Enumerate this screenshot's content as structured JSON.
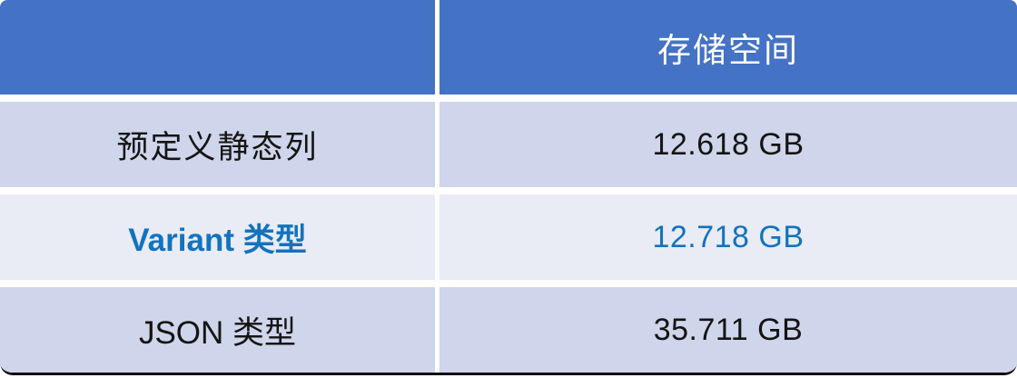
{
  "table": {
    "header": {
      "col1_label": "",
      "col2_label": "存储空间"
    },
    "rows": [
      {
        "label": "预定义静态列",
        "value": "12.618 GB",
        "accent": false
      },
      {
        "label": "Variant 类型",
        "value": "12.718 GB",
        "accent": true
      },
      {
        "label": "JSON 类型",
        "value": "35.711 GB",
        "accent": false
      }
    ]
  },
  "chart_data": {
    "type": "table",
    "title": "",
    "columns": [
      "",
      "存储空间"
    ],
    "categories": [
      "预定义静态列",
      "Variant 类型",
      "JSON 类型"
    ],
    "values_gb": [
      12.618,
      12.718,
      35.711
    ],
    "value_labels": [
      "12.618 GB",
      "12.718 GB",
      "35.711 GB"
    ],
    "highlighted_row": "Variant 类型",
    "layout": "banded-rows, centered text, header row on top"
  },
  "theme": {
    "header_bg": "#4472C4",
    "row_odd_bg": "#CFD5EA",
    "row_even_bg": "#E9EBF5",
    "accent_text": "#1273BE",
    "body_text": "#141414",
    "header_text": "#FFFFFF",
    "gap_color": "#FFFFFF",
    "frame_edge": "#0d0d0d"
  }
}
